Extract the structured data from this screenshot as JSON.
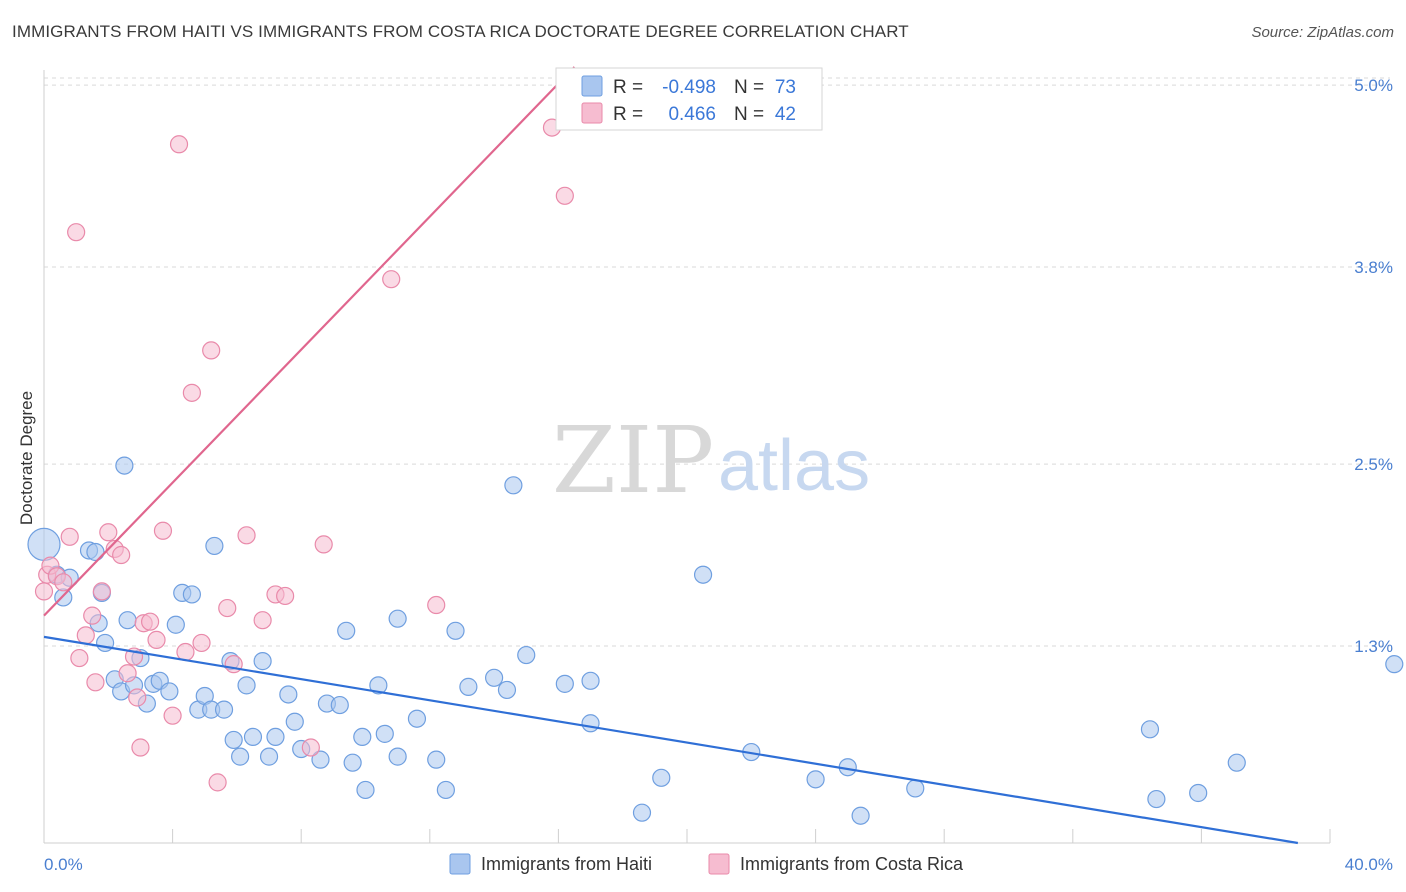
{
  "title": "IMMIGRANTS FROM HAITI VS IMMIGRANTS FROM COSTA RICA DOCTORATE DEGREE CORRELATION CHART",
  "source": "Source: ZipAtlas.com",
  "watermark": {
    "zip": "ZIP",
    "atlas": "atlas"
  },
  "colors": {
    "haiti_fill": "#a9c6ef",
    "haiti_stroke": "#6f9fe0",
    "haiti_line": "#2f6fd6",
    "costa_fill": "#f6bcd0",
    "costa_stroke": "#e98aaa",
    "costa_line": "#e0668e",
    "grid": "#d9d9d9",
    "axis_text": "#4a7fd0"
  },
  "legend": {
    "r_label": "R =",
    "n_label": "N =",
    "rows": [
      {
        "r": "-0.498",
        "n": "73"
      },
      {
        "r": "0.466",
        "n": "42"
      }
    ]
  },
  "chart_data": {
    "type": "scatter",
    "title": "IMMIGRANTS FROM HAITI VS IMMIGRANTS FROM COSTA RICA DOCTORATE DEGREE CORRELATION CHART",
    "xlabel": "",
    "ylabel": "Doctorate Degree",
    "xlim": [
      0,
      40
    ],
    "ylim": [
      0,
      5.1
    ],
    "x_tick_labels": [
      "0.0%",
      "40.0%"
    ],
    "y_ticks": [
      1.3,
      2.5,
      3.8,
      5.0
    ],
    "y_tick_labels": [
      "1.3%",
      "2.5%",
      "3.8%",
      "5.0%"
    ],
    "grid": true,
    "legend_position": "top-center",
    "series": [
      {
        "name": "Immigrants from Haiti",
        "r": -0.498,
        "n": 73,
        "trend": {
          "x": [
            0,
            39
          ],
          "y": [
            1.36,
            0.0
          ]
        },
        "points": [
          [
            0.0,
            1.97
          ],
          [
            0.4,
            1.77
          ],
          [
            0.6,
            1.62
          ],
          [
            0.8,
            1.75
          ],
          [
            1.4,
            1.93
          ],
          [
            1.6,
            1.92
          ],
          [
            1.8,
            1.65
          ],
          [
            1.7,
            1.45
          ],
          [
            1.9,
            1.32
          ],
          [
            2.2,
            1.08
          ],
          [
            2.4,
            1.0
          ],
          [
            2.5,
            2.49
          ],
          [
            2.6,
            1.47
          ],
          [
            2.8,
            1.04
          ],
          [
            3.0,
            1.22
          ],
          [
            3.2,
            0.92
          ],
          [
            3.4,
            1.05
          ],
          [
            3.6,
            1.07
          ],
          [
            3.9,
            1.0
          ],
          [
            4.1,
            1.44
          ],
          [
            4.3,
            1.65
          ],
          [
            4.6,
            1.64
          ],
          [
            4.8,
            0.88
          ],
          [
            5.0,
            0.97
          ],
          [
            5.2,
            0.88
          ],
          [
            5.3,
            1.96
          ],
          [
            5.6,
            0.88
          ],
          [
            5.8,
            1.2
          ],
          [
            5.9,
            0.68
          ],
          [
            6.1,
            0.57
          ],
          [
            6.3,
            1.04
          ],
          [
            6.5,
            0.7
          ],
          [
            6.8,
            1.2
          ],
          [
            7.0,
            0.57
          ],
          [
            7.2,
            0.7
          ],
          [
            7.6,
            0.98
          ],
          [
            7.8,
            0.8
          ],
          [
            8.0,
            0.62
          ],
          [
            8.6,
            0.55
          ],
          [
            8.8,
            0.92
          ],
          [
            9.2,
            0.91
          ],
          [
            9.4,
            1.4
          ],
          [
            9.6,
            0.53
          ],
          [
            10.0,
            0.35
          ],
          [
            9.9,
            0.7
          ],
          [
            10.4,
            1.04
          ],
          [
            10.6,
            0.72
          ],
          [
            11.0,
            1.48
          ],
          [
            11.0,
            0.57
          ],
          [
            11.6,
            0.82
          ],
          [
            12.2,
            0.55
          ],
          [
            12.5,
            0.35
          ],
          [
            12.8,
            1.4
          ],
          [
            13.2,
            1.03
          ],
          [
            14.0,
            1.09
          ],
          [
            14.4,
            1.01
          ],
          [
            14.6,
            2.36
          ],
          [
            15.0,
            1.24
          ],
          [
            16.2,
            1.05
          ],
          [
            17.0,
            0.79
          ],
          [
            17.0,
            1.07
          ],
          [
            18.6,
            0.2
          ],
          [
            19.2,
            0.43
          ],
          [
            20.5,
            1.77
          ],
          [
            22.0,
            0.6
          ],
          [
            24.0,
            0.42
          ],
          [
            25.0,
            0.5
          ],
          [
            25.4,
            0.18
          ],
          [
            27.1,
            0.36
          ],
          [
            34.4,
            0.75
          ],
          [
            34.6,
            0.29
          ],
          [
            35.9,
            0.33
          ],
          [
            37.1,
            0.53
          ],
          [
            42.0,
            1.18
          ]
        ]
      },
      {
        "name": "Immigrants from Costa Rica",
        "r": 0.466,
        "n": 42,
        "trend": {
          "x": [
            0,
            16.5
          ],
          "y": [
            1.5,
            5.12
          ]
        },
        "points": [
          [
            0.0,
            1.66
          ],
          [
            0.1,
            1.77
          ],
          [
            0.2,
            1.83
          ],
          [
            0.4,
            1.76
          ],
          [
            0.6,
            1.72
          ],
          [
            0.8,
            2.02
          ],
          [
            1.0,
            4.03
          ],
          [
            1.1,
            1.22
          ],
          [
            1.3,
            1.37
          ],
          [
            1.5,
            1.5
          ],
          [
            1.6,
            1.06
          ],
          [
            1.8,
            1.66
          ],
          [
            2.0,
            2.05
          ],
          [
            2.2,
            1.94
          ],
          [
            2.4,
            1.9
          ],
          [
            2.6,
            1.12
          ],
          [
            2.8,
            1.23
          ],
          [
            3.0,
            0.63
          ],
          [
            2.9,
            0.96
          ],
          [
            3.1,
            1.45
          ],
          [
            3.3,
            1.46
          ],
          [
            3.5,
            1.34
          ],
          [
            3.7,
            2.06
          ],
          [
            4.0,
            0.84
          ],
          [
            4.2,
            4.61
          ],
          [
            4.4,
            1.26
          ],
          [
            4.6,
            2.97
          ],
          [
            4.9,
            1.32
          ],
          [
            5.2,
            3.25
          ],
          [
            5.4,
            0.4
          ],
          [
            5.7,
            1.55
          ],
          [
            5.9,
            1.18
          ],
          [
            6.3,
            2.03
          ],
          [
            6.8,
            1.47
          ],
          [
            7.2,
            1.64
          ],
          [
            7.5,
            1.63
          ],
          [
            8.3,
            0.63
          ],
          [
            8.7,
            1.97
          ],
          [
            10.8,
            3.72
          ],
          [
            12.2,
            1.57
          ],
          [
            15.8,
            4.72
          ],
          [
            16.2,
            4.27
          ]
        ]
      }
    ]
  },
  "bottom_legend": [
    {
      "label": "Immigrants from Haiti"
    },
    {
      "label": "Immigrants from Costa Rica"
    }
  ]
}
